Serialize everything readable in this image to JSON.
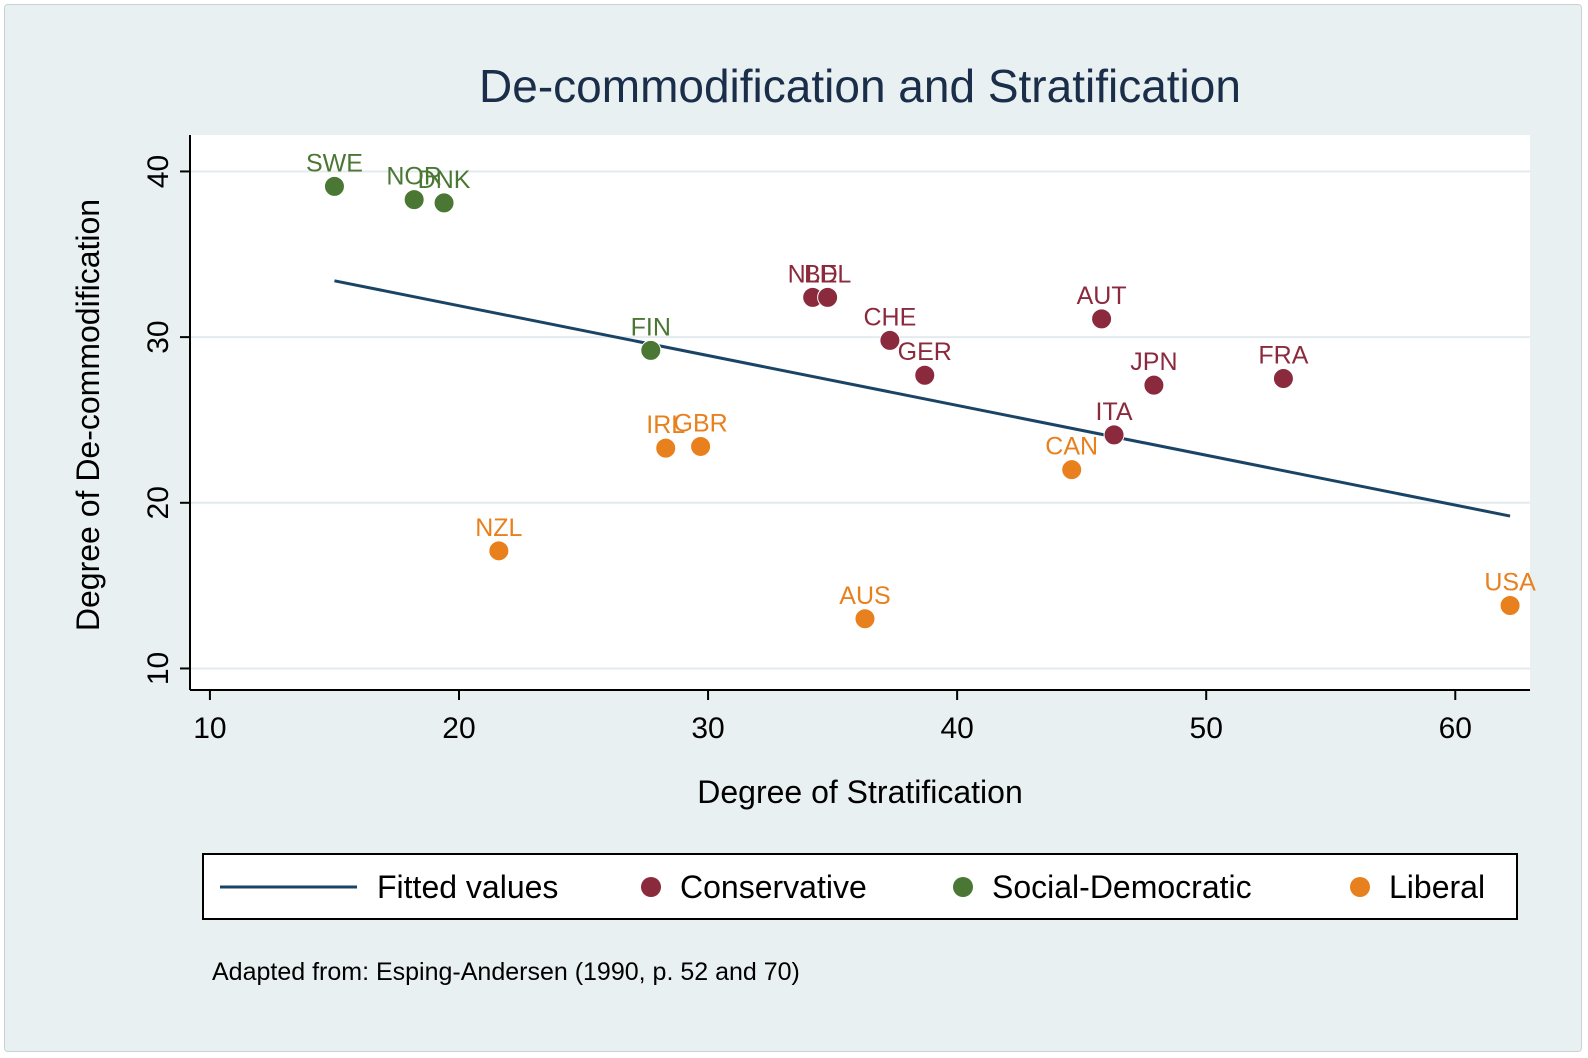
{
  "chart_data": {
    "type": "scatter",
    "title": "De-commodification and Stratification",
    "xlabel": "Degree of Stratification",
    "ylabel": "Degree of De-commodification",
    "xlim": [
      9.2,
      63
    ],
    "ylim": [
      8.7,
      42.2
    ],
    "xticks": [
      10,
      20,
      30,
      40,
      50,
      60
    ],
    "yticks": [
      10,
      20,
      30,
      40
    ],
    "grid": "horizontal",
    "legend_position": "bottom",
    "note": "Adapted from: Esping-Andersen (1990, p. 52 and 70)",
    "colors": {
      "Conservative": "#8c2a3d",
      "Social-Democratic": "#4a7733",
      "Liberal": "#e8801e",
      "fit": "#1a4466"
    },
    "fitted_line": {
      "name": "Fitted values",
      "x": [
        15,
        62.2
      ],
      "y": [
        33.4,
        19.2
      ]
    },
    "series": [
      {
        "name": "Conservative",
        "points": [
          {
            "label": "NLD",
            "x": 34.2,
            "y": 32.4
          },
          {
            "label": "BEL",
            "x": 34.8,
            "y": 32.4
          },
          {
            "label": "AUT",
            "x": 45.8,
            "y": 31.1
          },
          {
            "label": "CHE",
            "x": 37.3,
            "y": 29.8
          },
          {
            "label": "GER",
            "x": 38.7,
            "y": 27.7
          },
          {
            "label": "JPN",
            "x": 47.9,
            "y": 27.1
          },
          {
            "label": "FRA",
            "x": 53.1,
            "y": 27.5
          },
          {
            "label": "ITA",
            "x": 46.3,
            "y": 24.1
          }
        ]
      },
      {
        "name": "Social-Democratic",
        "points": [
          {
            "label": "SWE",
            "x": 15.0,
            "y": 39.1
          },
          {
            "label": "NOR",
            "x": 18.2,
            "y": 38.3
          },
          {
            "label": "DNK",
            "x": 19.4,
            "y": 38.1
          },
          {
            "label": "FIN",
            "x": 27.7,
            "y": 29.2
          }
        ]
      },
      {
        "name": "Liberal",
        "points": [
          {
            "label": "IRL",
            "x": 28.3,
            "y": 23.3
          },
          {
            "label": "GBR",
            "x": 29.7,
            "y": 23.4
          },
          {
            "label": "CAN",
            "x": 44.6,
            "y": 22.0
          },
          {
            "label": "NZL",
            "x": 21.6,
            "y": 17.1
          },
          {
            "label": "AUS",
            "x": 36.3,
            "y": 13.0
          },
          {
            "label": "USA",
            "x": 62.2,
            "y": 13.8
          }
        ]
      }
    ]
  }
}
